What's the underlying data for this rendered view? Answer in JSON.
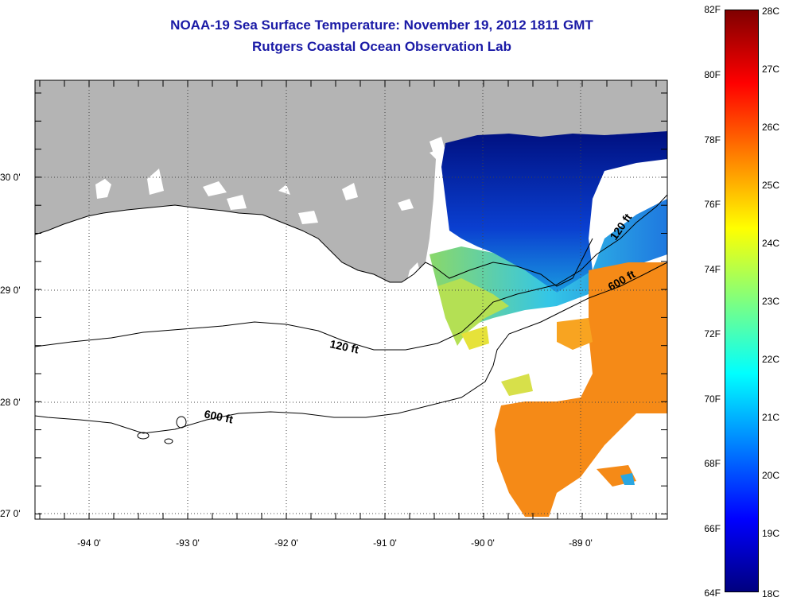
{
  "title": "NOAA-19 Sea Surface Temperature:  November 19, 2012 1811 GMT",
  "subtitle": "Rutgers Coastal Ocean Observation Lab",
  "lat_labels": [
    "30 0'",
    "29 0'",
    "28 0'",
    "27 0'"
  ],
  "lon_labels": [
    "-94 0'",
    "-93 0'",
    "-92 0'",
    "-91 0'",
    "-90 0'",
    "-89 0'"
  ],
  "contour_labels": {
    "c120_west": "120 ft",
    "c120_east": "120 ft",
    "c600_west": "600 ft",
    "c600_east": "600 ft"
  },
  "colorbar": {
    "fahrenheit": [
      "82F",
      "80F",
      "78F",
      "76F",
      "74F",
      "72F",
      "70F",
      "68F",
      "66F",
      "64F"
    ],
    "celsius": [
      "28C",
      "27C",
      "26C",
      "25C",
      "24C",
      "23C",
      "22C",
      "21C",
      "20C",
      "19C",
      "18C"
    ],
    "colors": [
      "#00007f",
      "#0000ff",
      "#007fff",
      "#00ffff",
      "#7fff7f",
      "#ffff00",
      "#ff7f00",
      "#ff0000",
      "#7f0000"
    ]
  },
  "colors": {
    "land": "#b4b4b4",
    "title": "#1a1aa6",
    "sst_cold": "#00138f",
    "sst_warm": "#f58a17"
  }
}
